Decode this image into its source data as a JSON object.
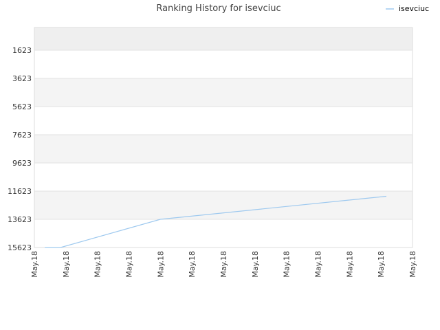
{
  "chart_data": {
    "type": "line",
    "title": "Ranking History for isevciuc",
    "xlabel": "",
    "ylabel": "",
    "y_inverted": true,
    "ylim": [
      15623,
      0
    ],
    "y_ticks": [
      1623,
      3623,
      5623,
      7623,
      9623,
      11623,
      13623,
      15623
    ],
    "x_ticks": [
      "May.18",
      "May.18",
      "May.18",
      "May.18",
      "May.18",
      "May.18",
      "May.18",
      "May.18",
      "May.18",
      "May.18",
      "May.18",
      "May.18",
      "May.18"
    ],
    "x_range": [
      0,
      12
    ],
    "grid": true,
    "legend": {
      "position": "top-right",
      "entries": [
        "isevciuc"
      ]
    },
    "series": [
      {
        "name": "isevciuc",
        "color": "#9ec9ef",
        "points": [
          {
            "x": 0.33,
            "y": 15623
          },
          {
            "x": 0.83,
            "y": 15623
          },
          {
            "x": 4.0,
            "y": 13623
          },
          {
            "x": 11.17,
            "y": 11988
          }
        ]
      }
    ]
  }
}
